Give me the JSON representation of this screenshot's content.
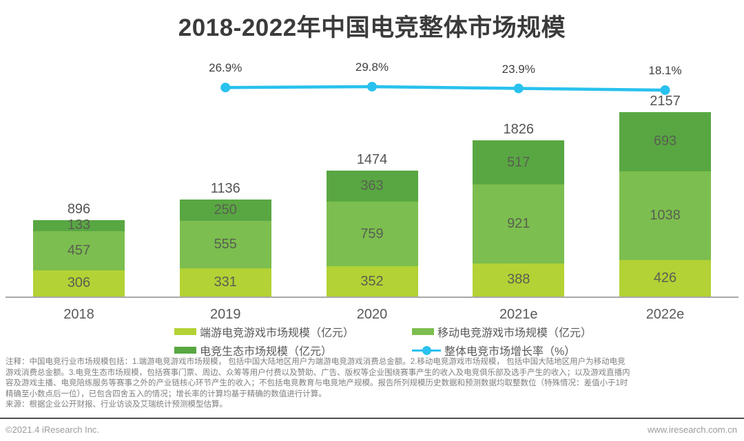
{
  "title": "2018-2022年中国电竞整体市场规模",
  "chart_data": {
    "type": "bar",
    "subtype": "stacked-bar-with-line",
    "categories": [
      "2018",
      "2019",
      "2020",
      "2021e",
      "2022e"
    ],
    "series": [
      {
        "name": "端游电竞游戏市场规模（亿元）",
        "color": "#b3d235",
        "values": [
          306,
          331,
          352,
          388,
          426
        ]
      },
      {
        "name": "移动电竞游戏市场规模（亿元）",
        "color": "#7cbe4f",
        "values": [
          457,
          555,
          759,
          921,
          1038
        ]
      },
      {
        "name": "电竞生态市场规模（亿元）",
        "color": "#58a742",
        "values": [
          133,
          250,
          363,
          517,
          693
        ]
      }
    ],
    "totals": [
      896,
      1136,
      1474,
      1826,
      2157
    ],
    "line_series": {
      "name": "整体电竞市场增长率（%）",
      "color": "#29c1ee",
      "values": [
        26.9,
        29.8,
        23.9,
        18.1
      ],
      "labels": [
        "26.9%",
        "29.8%",
        "23.9%",
        "18.1%"
      ],
      "applies_to": [
        "2019",
        "2020",
        "2021e",
        "2022e"
      ]
    },
    "ylabel": "",
    "xlabel": "",
    "grid": false,
    "legend_position": "bottom"
  },
  "legend": {
    "items": [
      {
        "label": "端游电竞游戏市场规模（亿元）",
        "marker": "swatch",
        "color": "#b3d235"
      },
      {
        "label": "移动电竞游戏市场规模（亿元）",
        "marker": "swatch",
        "color": "#7cbe4f"
      },
      {
        "label": "电竞生态市场规模（亿元）",
        "marker": "swatch",
        "color": "#58a742"
      },
      {
        "label": "整体电竞市场增长率（%）",
        "marker": "line-dot",
        "color": "#29c1ee"
      }
    ]
  },
  "notes": {
    "lines": [
      "注释：中国电竞行业市场规模包括：1.端游电竞游戏市场规模， 包括中国大陆地区用户为端游电竞游戏消费总金额。2.移动电竞游戏市场规模， 包括中国大陆地区用户为移动电竞",
      "游戏消费总金额。3.电竞生态市场规模，包括赛事门票、周边、众筹等用户付费以及赞助、广告、版权等企业围绕赛事产生的收入及电竞俱乐部及选手产生的收入；以及游戏直播内",
      "容及游戏主播、电竞陪练服务等赛事之外的产业链核心环节产生的收入；不包括电竞教育与电竞地产规模。报告所列规模历史数据和预测数据均取整数位（特殊情况：差值小于1时",
      "精确至小数点后一位），已包含四舍五入的情况；增长率的计算均基于精确的数值进行计算。",
      "来源：根据企业公开财报、行业访谈及艾瑞统计预测模型估算。"
    ]
  },
  "footer": {
    "left": "©2021.4 iResearch Inc.",
    "right": "www.iresearch.com.cn"
  }
}
